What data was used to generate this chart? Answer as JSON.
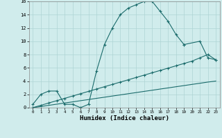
{
  "xlabel": "Humidex (Indice chaleur)",
  "bg_color": "#d0ecec",
  "grid_color": "#aed4d4",
  "line_color": "#1a6b6b",
  "xlim": [
    -0.5,
    23.5
  ],
  "ylim": [
    0,
    16
  ],
  "xticks": [
    0,
    1,
    2,
    3,
    4,
    5,
    6,
    7,
    8,
    9,
    10,
    11,
    12,
    13,
    14,
    15,
    16,
    17,
    18,
    19,
    20,
    21,
    22,
    23
  ],
  "yticks": [
    0,
    2,
    4,
    6,
    8,
    10,
    12,
    14,
    16
  ],
  "line1_x": [
    0,
    1,
    2,
    3,
    4,
    5,
    6,
    7,
    8,
    9,
    10,
    11,
    12,
    13,
    14,
    15,
    16,
    17,
    18,
    19
  ],
  "line1_y": [
    0.5,
    2.0,
    2.5,
    2.5,
    0.5,
    0.5,
    0.0,
    0.5,
    5.5,
    9.5,
    12.0,
    14.0,
    15.0,
    15.5,
    16.0,
    16.0,
    14.5,
    13.0,
    11.0,
    9.5
  ],
  "line2_x": [
    0,
    1,
    2,
    3,
    4,
    5,
    6,
    7,
    8,
    9,
    10,
    11,
    12,
    13,
    14,
    15,
    16,
    17,
    18,
    19,
    20,
    21,
    22,
    23
  ],
  "line2_y": [
    0.0,
    0.35,
    0.7,
    1.05,
    1.4,
    1.75,
    2.1,
    2.45,
    2.8,
    3.15,
    3.5,
    3.85,
    4.2,
    4.55,
    4.9,
    5.25,
    5.6,
    5.95,
    6.3,
    6.65,
    7.0,
    7.5,
    8.0,
    7.2
  ],
  "line3_x": [
    0,
    1,
    2,
    3,
    4,
    5,
    6,
    7,
    8,
    9,
    10,
    11,
    12,
    13,
    14,
    15,
    16,
    17,
    18,
    19,
    20,
    21,
    22,
    23
  ],
  "line3_y": [
    0.0,
    0.17,
    0.35,
    0.52,
    0.7,
    0.87,
    1.05,
    1.22,
    1.4,
    1.57,
    1.75,
    1.92,
    2.1,
    2.27,
    2.45,
    2.62,
    2.8,
    2.97,
    3.15,
    3.32,
    3.5,
    3.67,
    3.85,
    4.0
  ],
  "line4_x": [
    19,
    21,
    22,
    23
  ],
  "line4_y": [
    9.5,
    10.0,
    7.5,
    7.2
  ]
}
